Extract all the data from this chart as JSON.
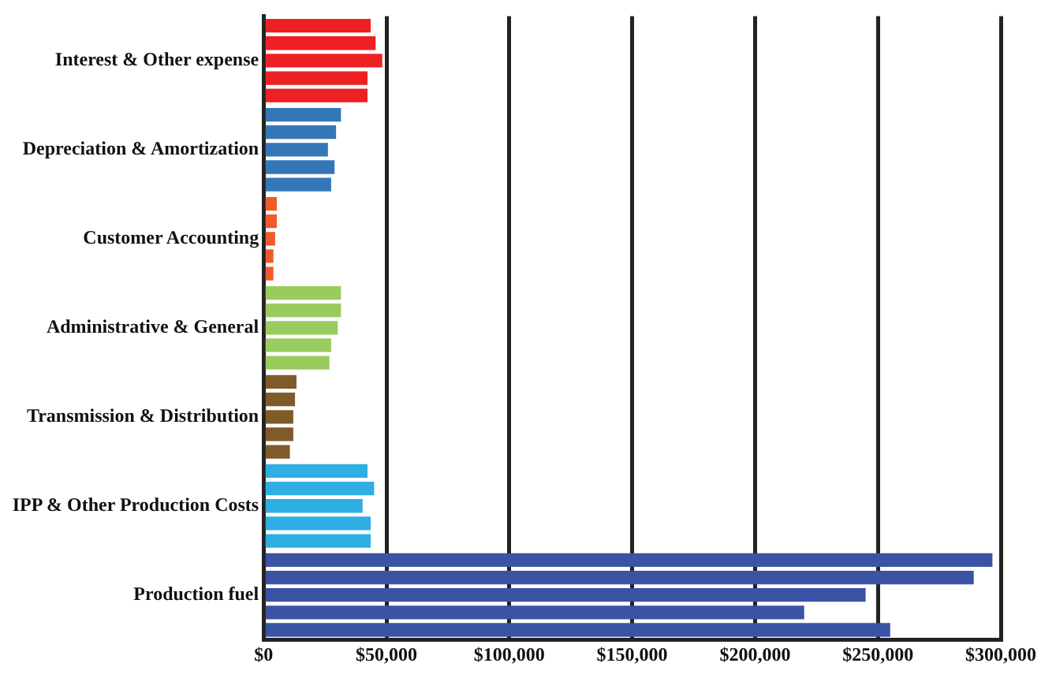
{
  "chart_data": {
    "type": "bar",
    "orientation": "horizontal",
    "categories": [
      "Interest & Other expense",
      "Depreciation & Amortization",
      "Customer Accounting",
      "Administrative & General",
      "Transmission & Distribution",
      "IPP & Other Production Costs",
      "Production fuel"
    ],
    "series": [
      {
        "colors": [
          "#ed2024",
          "#3477b7",
          "#f15a29",
          "#99cc5e",
          "#7f5a2b",
          "#2eaee2",
          "#3b53a4"
        ],
        "values": [
          43600,
          31500,
          5400,
          31500,
          13400,
          42300,
          296600
        ]
      },
      {
        "colors": [
          "#ed2024",
          "#3477b7",
          "#f15a29",
          "#99cc5e",
          "#7f5a2b",
          "#2eaee2",
          "#3b53a4"
        ],
        "values": [
          45600,
          29500,
          5400,
          31500,
          12800,
          45000,
          289000
        ]
      },
      {
        "colors": [
          "#ed2024",
          "#3477b7",
          "#f15a29",
          "#99cc5e",
          "#7f5a2b",
          "#2eaee2",
          "#3b53a4"
        ],
        "values": [
          48300,
          26200,
          4700,
          30200,
          12100,
          40300,
          245000
        ]
      },
      {
        "colors": [
          "#ed2024",
          "#3477b7",
          "#f15a29",
          "#99cc5e",
          "#7f5a2b",
          "#2eaee2",
          "#3b53a4"
        ],
        "values": [
          42300,
          28900,
          4000,
          27500,
          12100,
          43600,
          220000
        ]
      },
      {
        "colors": [
          "#ed2024",
          "#3477b7",
          "#f15a29",
          "#99cc5e",
          "#7f5a2b",
          "#2eaee2",
          "#3b53a4"
        ],
        "values": [
          42300,
          27500,
          4000,
          26800,
          10700,
          43600,
          255000
        ]
      }
    ],
    "xlim": [
      0,
      300000
    ],
    "xticks": [
      {
        "value": 0,
        "label": "$0"
      },
      {
        "value": 50000,
        "label": "$50,000"
      },
      {
        "value": 100000,
        "label": "$100,000"
      },
      {
        "value": 150000,
        "label": "$150,000"
      },
      {
        "value": 200000,
        "label": "$200,000"
      },
      {
        "value": 250000,
        "label": "$250,000"
      },
      {
        "value": 300000,
        "label": "$300,000"
      }
    ],
    "grid": "x",
    "legend": false
  }
}
